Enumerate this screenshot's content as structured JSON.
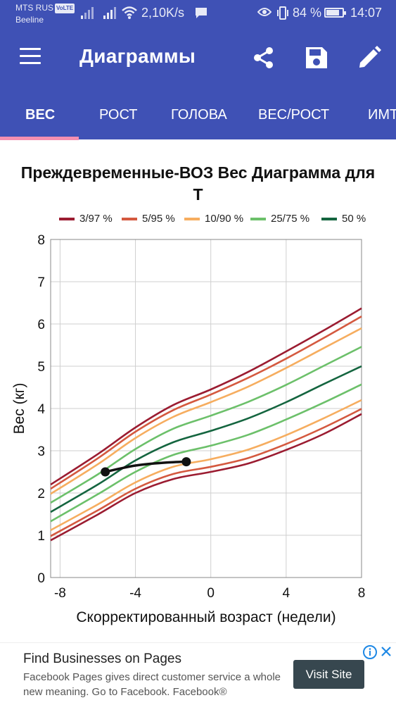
{
  "status_bar": {
    "carrier": "MTS RUS",
    "volte": "VoLTE",
    "carrier2": "Beeline",
    "speed": "2,10K/s",
    "battery_pct": "84 %",
    "battery_level": 0.84,
    "time": "14:07"
  },
  "app_bar": {
    "title": "Диаграммы",
    "actions": [
      "share-icon",
      "save-icon",
      "edit-icon"
    ]
  },
  "tabs": [
    {
      "label": "ВЕС",
      "active": true
    },
    {
      "label": "РОСТ",
      "active": false
    },
    {
      "label": "ГОЛОВА",
      "active": false
    },
    {
      "label": "ВЕС/РОСТ",
      "active": false
    },
    {
      "label": "ИМТ",
      "active": false
    }
  ],
  "colors": {
    "primary": "#3f51b5",
    "tab_indicator": "#f48fb1",
    "p3_97": "#9b1c31",
    "p5_95": "#d4593f",
    "p10_90": "#f6ad5f",
    "p25_75": "#6cc06a",
    "p50": "#14653f"
  },
  "chart_data": {
    "type": "line",
    "title": "Преждевременные-ВОЗ Вес Диаграмма для Т",
    "xlabel": "Скорректированный возраст (недели)",
    "ylabel": "Вес (кг)",
    "xlim": [
      -8.5,
      8
    ],
    "ylim": [
      0,
      8
    ],
    "xticks": [
      -8,
      -4,
      0,
      4,
      8
    ],
    "yticks": [
      0,
      1,
      2,
      3,
      4,
      5,
      6,
      7,
      8
    ],
    "grid": true,
    "legend": [
      {
        "label": "3/97 %",
        "color": "#9b1c31"
      },
      {
        "label": "5/95 %",
        "color": "#d4593f"
      },
      {
        "label": "10/90 %",
        "color": "#f6ad5f"
      },
      {
        "label": "25/75 %",
        "color": "#6cc06a"
      },
      {
        "label": "50 %",
        "color": "#14653f"
      }
    ],
    "legend_position": "top",
    "x": [
      -8.5,
      -6,
      -4,
      -2,
      0,
      2,
      4,
      6,
      8
    ],
    "series": [
      {
        "name": "3/97 %",
        "color": "#9b1c31",
        "values": [
          2.2,
          2.92,
          3.55,
          4.08,
          4.45,
          4.87,
          5.35,
          5.85,
          6.37
        ]
      },
      {
        "name": "5/95 %",
        "color": "#d4593f",
        "values": [
          2.1,
          2.82,
          3.45,
          3.96,
          4.33,
          4.73,
          5.18,
          5.67,
          6.18
        ]
      },
      {
        "name": "10/90 %",
        "color": "#f6ad5f",
        "values": [
          1.98,
          2.68,
          3.3,
          3.8,
          4.15,
          4.52,
          4.96,
          5.43,
          5.9
        ]
      },
      {
        "name": "25/75 %",
        "color": "#6cc06a",
        "values": [
          1.77,
          2.44,
          3.04,
          3.52,
          3.83,
          4.16,
          4.56,
          5.01,
          5.46
        ]
      },
      {
        "name": "50 %",
        "color": "#14653f",
        "values": [
          1.55,
          2.2,
          2.77,
          3.2,
          3.47,
          3.77,
          4.15,
          4.58,
          5.0
        ]
      },
      {
        "name": "25/75 %",
        "color": "#6cc06a",
        "values": [
          1.33,
          1.97,
          2.5,
          2.9,
          3.12,
          3.38,
          3.74,
          4.14,
          4.57
        ]
      },
      {
        "name": "10/90 %",
        "color": "#f6ad5f",
        "values": [
          1.12,
          1.73,
          2.25,
          2.62,
          2.8,
          3.03,
          3.37,
          3.77,
          4.2
        ]
      },
      {
        "name": "5/95 %",
        "color": "#d4593f",
        "values": [
          0.98,
          1.59,
          2.1,
          2.45,
          2.62,
          2.83,
          3.16,
          3.55,
          3.99
        ]
      },
      {
        "name": "3/97 %",
        "color": "#9b1c31",
        "values": [
          0.88,
          1.49,
          2.0,
          2.33,
          2.5,
          2.7,
          3.02,
          3.4,
          3.87
        ]
      }
    ],
    "patient": {
      "color": "#111111",
      "x": [
        -5.6,
        -4.8,
        -4.0,
        -3.0,
        -2.0,
        -1.3
      ],
      "y": [
        2.5,
        2.58,
        2.65,
        2.7,
        2.73,
        2.74
      ],
      "markers_x": [
        -5.6,
        -1.3
      ],
      "markers_y": [
        2.5,
        2.74
      ]
    }
  },
  "ad": {
    "title": "Find Businesses on Pages",
    "text": "Facebook Pages gives direct customer service a whole new meaning. Go to Facebook. Facebook®",
    "button": "Visit Site"
  }
}
